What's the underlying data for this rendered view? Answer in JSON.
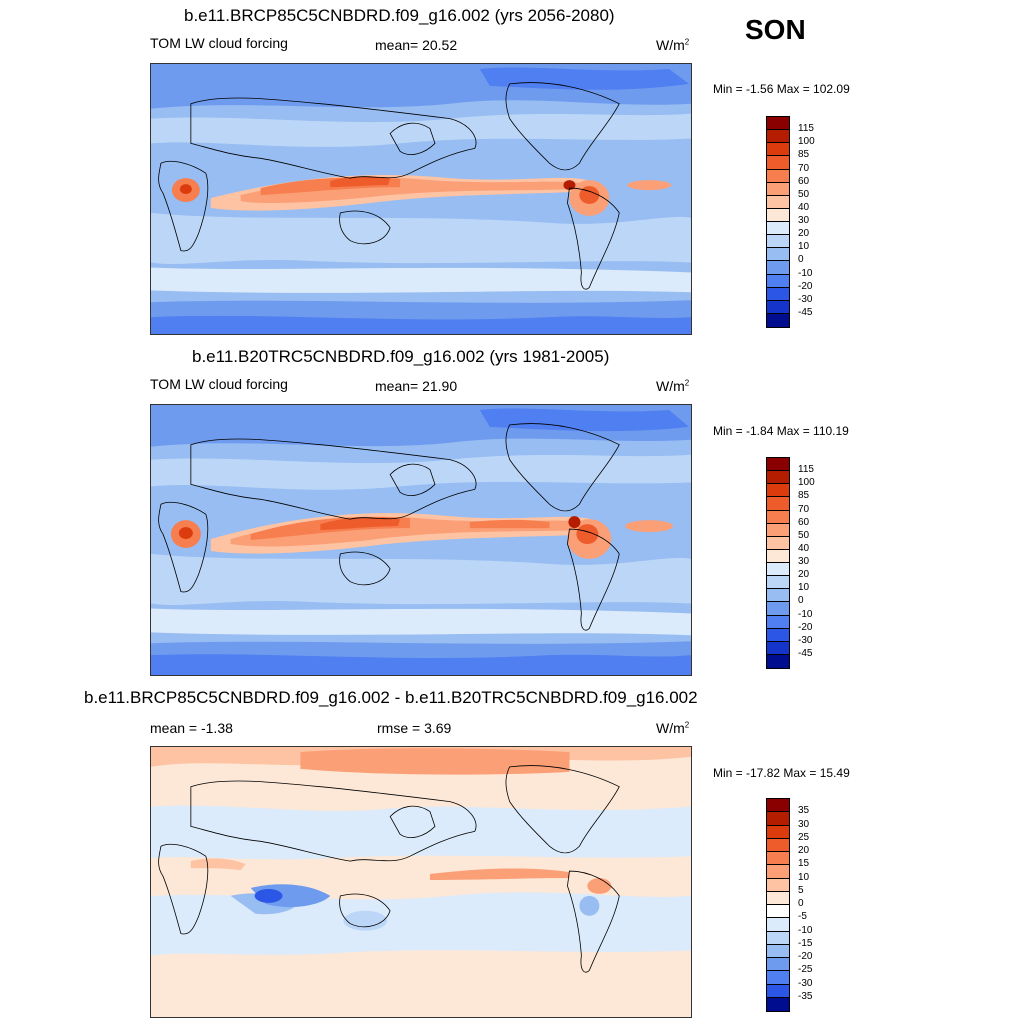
{
  "season": "SON",
  "panels": [
    {
      "title": "b.e11.BRCP85C5CNBDRD.f09_g16.002 (yrs 2056-2080)",
      "left_label": "TOM LW cloud forcing",
      "stat1": "mean=  20.52",
      "stat2": "",
      "units": "W/m",
      "units_sup": "2",
      "minmax": "Min =  -1.56 Max = 102.09",
      "colorbar": {
        "labels": [
          "115",
          "100",
          "85",
          "70",
          "60",
          "50",
          "40",
          "30",
          "20",
          "10",
          "0",
          "-10",
          "-20",
          "-30",
          "-45"
        ],
        "colors": [
          "#8a0000",
          "#b51d00",
          "#dc3b0e",
          "#ef5c2c",
          "#f77e4e",
          "#fb9f77",
          "#fdc3a3",
          "#fde7d6",
          "#dcebfb",
          "#bcd6f7",
          "#97bdf2",
          "#6f9bee",
          "#4f7ff0",
          "#2b56e6",
          "#1534c9",
          "#000d8f"
        ]
      }
    },
    {
      "title": "b.e11.B20TRC5CNBDRD.f09_g16.002 (yrs 1981-2005)",
      "left_label": "TOM LW cloud forcing",
      "stat1": "mean=  21.90",
      "stat2": "",
      "units": "W/m",
      "units_sup": "2",
      "minmax": "Min =  -1.84 Max = 110.19",
      "colorbar": {
        "labels": [
          "115",
          "100",
          "85",
          "70",
          "60",
          "50",
          "40",
          "30",
          "20",
          "10",
          "0",
          "-10",
          "-20",
          "-30",
          "-45"
        ],
        "colors": [
          "#8a0000",
          "#b51d00",
          "#dc3b0e",
          "#ef5c2c",
          "#f77e4e",
          "#fb9f77",
          "#fdc3a3",
          "#fde7d6",
          "#dcebfb",
          "#bcd6f7",
          "#97bdf2",
          "#6f9bee",
          "#4f7ff0",
          "#2b56e6",
          "#1534c9",
          "#000d8f"
        ]
      }
    },
    {
      "title": "b.e11.BRCP85C5CNBDRD.f09_g16.002 - b.e11.B20TRC5CNBDRD.f09_g16.002",
      "left_label": "",
      "stat1": "mean =  -1.38",
      "stat2": "rmse =   3.69",
      "units": "W/m",
      "units_sup": "2",
      "minmax": "Min = -17.82 Max =  15.49",
      "colorbar": {
        "labels": [
          "35",
          "30",
          "25",
          "20",
          "15",
          "10",
          "5",
          "0",
          "-5",
          "-10",
          "-15",
          "-20",
          "-25",
          "-30",
          "-35"
        ],
        "colors": [
          "#8a0000",
          "#b51d00",
          "#dc3b0e",
          "#ef5c2c",
          "#f77e4e",
          "#fb9f77",
          "#fdc3a3",
          "#fde7d6",
          "#ffffff",
          "#dcebfb",
          "#bcd6f7",
          "#97bdf2",
          "#6f9bee",
          "#4f7ff0",
          "#2b56e6",
          "#000d8f"
        ]
      }
    }
  ]
}
